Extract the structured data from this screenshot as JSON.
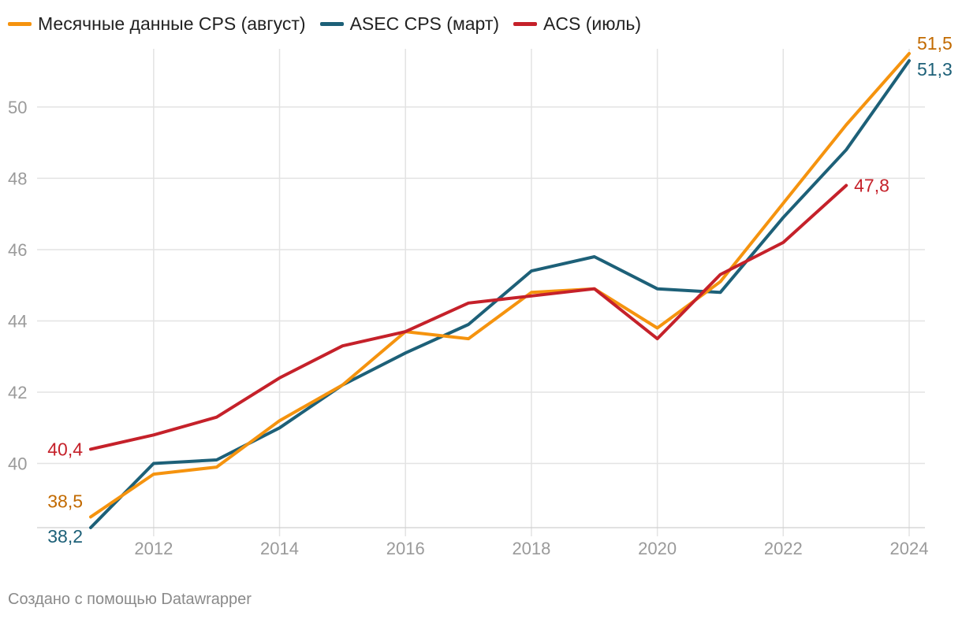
{
  "legend": {
    "items": [
      {
        "label": "Месячные данные CPS (август)",
        "color": "#f5930e"
      },
      {
        "label": "ASEC CPS (март)",
        "color": "#1d6078"
      },
      {
        "label": "ACS (июль)",
        "color": "#c5212a"
      }
    ]
  },
  "footer": {
    "credit": "Создано с помощью Datawrapper"
  },
  "chart_data": {
    "type": "line",
    "title": "",
    "xlabel": "",
    "ylabel": "",
    "xlim": [
      2011,
      2024
    ],
    "ylim": [
      38.2,
      51.5
    ],
    "grid": true,
    "legend_position": "top-left",
    "x_ticks": [
      {
        "value": 2012,
        "label": "2012"
      },
      {
        "value": 2014,
        "label": "2014"
      },
      {
        "value": 2016,
        "label": "2016"
      },
      {
        "value": 2018,
        "label": "2018"
      },
      {
        "value": 2020,
        "label": "2020"
      },
      {
        "value": 2022,
        "label": "2022"
      },
      {
        "value": 2024,
        "label": "2024"
      }
    ],
    "y_ticks": [
      {
        "value": 40,
        "label": "40"
      },
      {
        "value": 42,
        "label": "42"
      },
      {
        "value": 44,
        "label": "44"
      },
      {
        "value": 46,
        "label": "46"
      },
      {
        "value": 48,
        "label": "48"
      },
      {
        "value": 50,
        "label": "50"
      }
    ],
    "series": [
      {
        "name": "Месячные данные CPS (август)",
        "color": "#f5930e",
        "label_color": "#c26a00",
        "x": [
          2011,
          2012,
          2013,
          2014,
          2015,
          2016,
          2017,
          2018,
          2019,
          2020,
          2021,
          2022,
          2023,
          2024
        ],
        "values": [
          38.5,
          39.7,
          39.9,
          41.2,
          42.2,
          43.7,
          43.5,
          44.8,
          44.9,
          43.8,
          45.1,
          47.3,
          49.5,
          51.5
        ],
        "start_label": "38,5",
        "end_label": "51,5"
      },
      {
        "name": "ASEC CPS (март)",
        "color": "#1d6078",
        "label_color": "#1d6078",
        "x": [
          2011,
          2012,
          2013,
          2014,
          2015,
          2016,
          2017,
          2018,
          2019,
          2020,
          2021,
          2022,
          2023,
          2024
        ],
        "values": [
          38.2,
          40.0,
          40.1,
          41.0,
          42.2,
          43.1,
          43.9,
          45.4,
          45.8,
          44.9,
          44.8,
          46.9,
          48.8,
          51.3
        ],
        "start_label": "38,2",
        "end_label": "51,3"
      },
      {
        "name": "ACS (июль)",
        "color": "#c5212a",
        "label_color": "#c5212a",
        "x": [
          2011,
          2012,
          2013,
          2014,
          2015,
          2016,
          2017,
          2018,
          2019,
          2020,
          2021,
          2022,
          2023
        ],
        "values": [
          40.4,
          40.8,
          41.3,
          42.4,
          43.3,
          43.7,
          44.5,
          44.7,
          44.9,
          43.5,
          45.3,
          46.2,
          47.8
        ],
        "start_label": "40,4",
        "end_label": "47,8"
      }
    ]
  }
}
